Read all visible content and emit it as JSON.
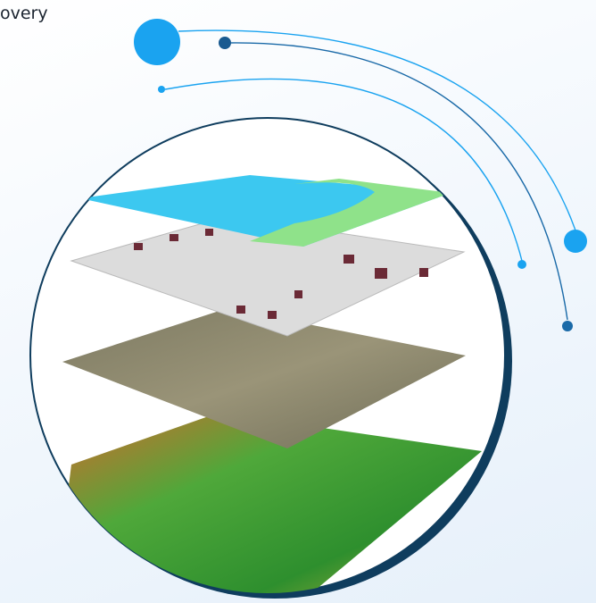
{
  "text": "overy"
}
